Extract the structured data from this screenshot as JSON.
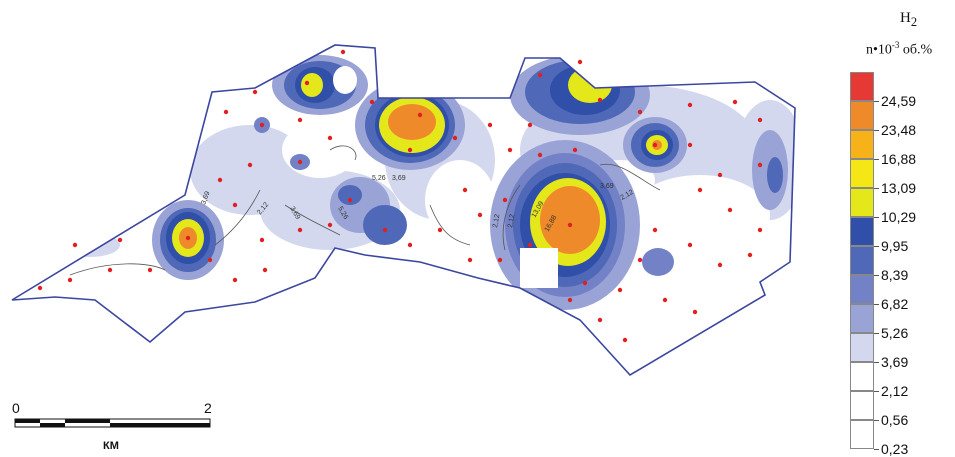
{
  "legend": {
    "title": "H",
    "title_sub": "2",
    "unit_prefix": "n•10",
    "unit_exp": "-3",
    "unit_suffix": " об.%",
    "classes": [
      {
        "color": "#e53935"
      },
      {
        "color": "#ef8a2b"
      },
      {
        "color": "#f7b21a"
      },
      {
        "color": "#f5e615"
      },
      {
        "color": "#e4e81b"
      },
      {
        "color": "#2f4fa8"
      },
      {
        "color": "#4f68b8"
      },
      {
        "color": "#7381c6"
      },
      {
        "color": "#9aa3d6"
      },
      {
        "color": "#d4d8ef"
      },
      {
        "color": "#ffffff"
      },
      {
        "color": "#ffffff"
      },
      {
        "color": "#ffffff"
      }
    ],
    "tick_labels": [
      "24,59",
      "23,48",
      "16,88",
      "13,09",
      "10,29",
      "9,95",
      "8,39",
      "6,82",
      "5,26",
      "3,69",
      "2,12",
      "0,56",
      "0,23"
    ]
  },
  "scale_bar": {
    "start": "0",
    "end": "2",
    "unit": "КМ"
  },
  "contour_labels": [
    "3,69",
    "2,12",
    "3,69",
    "5,26",
    "5,26",
    "3,69",
    "2,12",
    "2,12",
    "16,88",
    "13,09",
    "3,69",
    "2,12"
  ],
  "colors": {
    "boundary": "#3b46a0",
    "sample_point": "#e02020"
  }
}
